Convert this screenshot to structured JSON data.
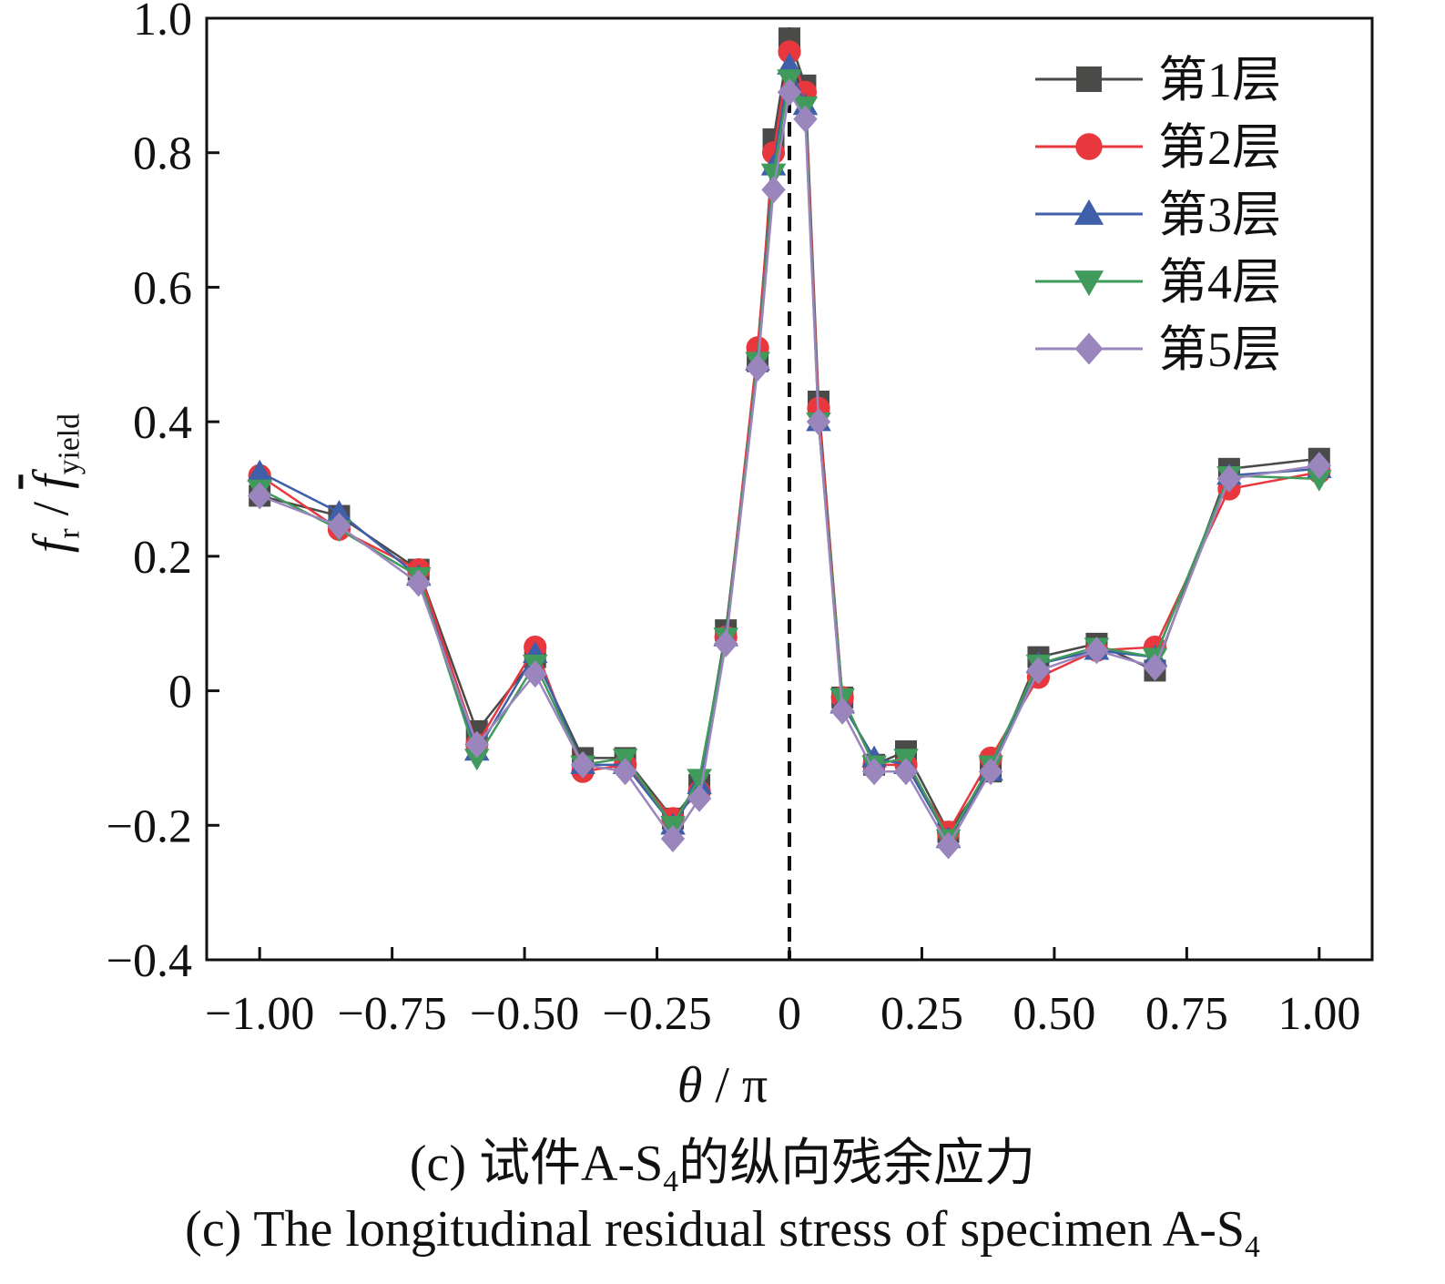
{
  "chart_data": {
    "type": "line",
    "xlabel": "θ / π",
    "ylabel": "f_r / f̄_yield",
    "xlim": [
      -1.1,
      1.1
    ],
    "ylim": [
      -0.4,
      1.0
    ],
    "x_ticks": [
      "−1.00",
      "−0.75",
      "−0.50",
      "−0.25",
      "0",
      "0.25",
      "0.50",
      "0.75",
      "1.00"
    ],
    "x_tick_values": [
      -1.0,
      -0.75,
      -0.5,
      -0.25,
      0,
      0.25,
      0.5,
      0.75,
      1.0
    ],
    "y_ticks": [
      "−0.4",
      "−0.2",
      "0",
      "0.2",
      "0.4",
      "0.6",
      "0.8",
      "1.0"
    ],
    "y_tick_values": [
      -0.4,
      -0.2,
      0,
      0.2,
      0.4,
      0.6,
      0.8,
      1.0
    ],
    "reference_line": {
      "x": 0,
      "style": "dashed"
    },
    "legend_position": "top-right",
    "x": [
      -1.0,
      -0.85,
      -0.7,
      -0.59,
      -0.48,
      -0.39,
      -0.31,
      -0.22,
      -0.17,
      -0.12,
      -0.06,
      -0.03,
      0,
      0.03,
      0.055,
      0.1,
      0.16,
      0.22,
      0.3,
      0.38,
      0.47,
      0.58,
      0.69,
      0.83,
      1.0
    ],
    "series": [
      {
        "name": "第1层",
        "color": "#4a4a48",
        "marker": "square",
        "values": [
          0.29,
          0.26,
          0.18,
          -0.06,
          0.05,
          -0.1,
          -0.1,
          -0.19,
          -0.14,
          0.09,
          0.49,
          0.82,
          0.97,
          0.9,
          0.43,
          -0.01,
          -0.11,
          -0.09,
          -0.21,
          -0.12,
          0.05,
          0.07,
          0.03,
          0.33,
          0.345
        ]
      },
      {
        "name": "第2层",
        "color": "#e8383d",
        "marker": "circle",
        "values": [
          0.32,
          0.24,
          0.18,
          -0.08,
          0.065,
          -0.12,
          -0.11,
          -0.19,
          -0.15,
          0.08,
          0.51,
          0.8,
          0.95,
          0.89,
          0.42,
          -0.01,
          -0.11,
          -0.11,
          -0.21,
          -0.1,
          0.02,
          0.06,
          0.065,
          0.3,
          0.325
        ]
      },
      {
        "name": "第3层",
        "color": "#3f5fa8",
        "marker": "triangle-up",
        "values": [
          0.325,
          0.265,
          0.17,
          -0.09,
          0.055,
          -0.11,
          -0.11,
          -0.2,
          -0.14,
          0.08,
          0.49,
          0.78,
          0.93,
          0.87,
          0.4,
          -0.02,
          -0.1,
          -0.11,
          -0.22,
          -0.12,
          0.04,
          0.06,
          0.05,
          0.32,
          0.33
        ]
      },
      {
        "name": "第4层",
        "color": "#3f9a5b",
        "marker": "triangle-down",
        "values": [
          0.3,
          0.24,
          0.17,
          -0.1,
          0.04,
          -0.11,
          -0.1,
          -0.2,
          -0.13,
          0.08,
          0.49,
          0.77,
          0.91,
          0.87,
          0.4,
          -0.01,
          -0.11,
          -0.1,
          -0.22,
          -0.11,
          0.04,
          0.065,
          0.05,
          0.32,
          0.315
        ]
      },
      {
        "name": "第5层",
        "color": "#9a85bd",
        "marker": "diamond",
        "values": [
          0.29,
          0.245,
          0.16,
          -0.08,
          0.025,
          -0.11,
          -0.12,
          -0.22,
          -0.16,
          0.07,
          0.48,
          0.745,
          0.89,
          0.85,
          0.4,
          -0.03,
          -0.12,
          -0.12,
          -0.23,
          -0.12,
          0.03,
          0.06,
          0.035,
          0.315,
          0.335
        ]
      }
    ]
  },
  "caption": {
    "zh_prefix": "(c)  试件A-S",
    "zh_sub": "4",
    "zh_suffix": "的纵向残余应力",
    "en_prefix": "(c)  The longitudinal residual stress of specimen A-S",
    "en_sub": "4"
  },
  "axis_text": {
    "x_theta": "θ",
    "x_rest": " / π",
    "y_f": "f",
    "y_r": "r",
    "y_slash": " / ",
    "y_fbar": "f",
    "y_yield": "yield"
  }
}
